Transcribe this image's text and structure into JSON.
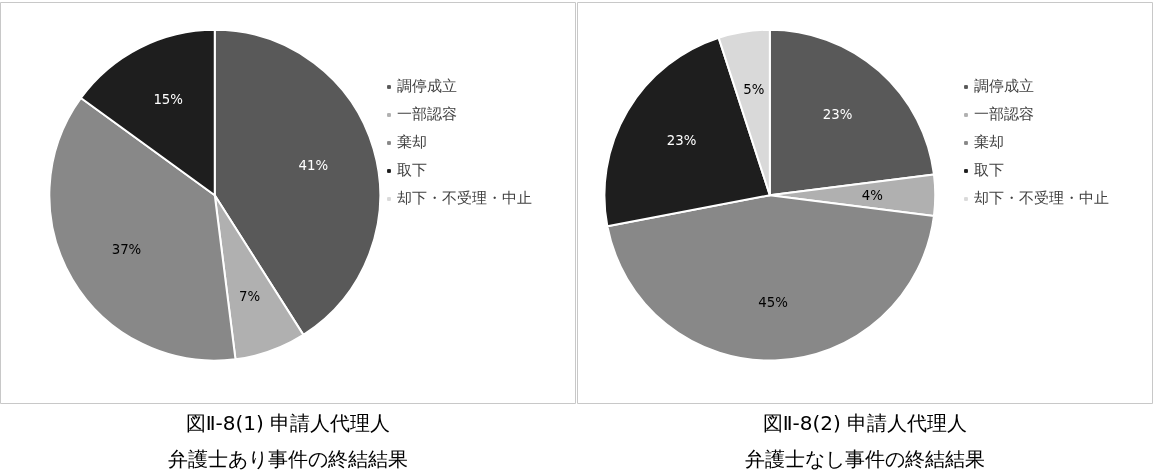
{
  "chart_data": [
    {
      "type": "pie",
      "title": "図Ⅱ-8(1) 申請人代理人",
      "subtitle": "弁護士あり事件の終結結果",
      "categories": [
        "調停成立",
        "一部認容",
        "棄却",
        "取下",
        "却下・不受理・中止"
      ],
      "values": [
        41,
        7,
        37,
        15,
        0
      ],
      "colors": [
        "#595959",
        "#b0b0b0",
        "#888888",
        "#1e1e1e",
        "#d9d9d9"
      ],
      "value_labels": [
        "41%",
        "7%",
        "37%",
        "15%",
        null
      ],
      "legend": "right"
    },
    {
      "type": "pie",
      "title": "図Ⅱ-8(2) 申請人代理人",
      "subtitle": "弁護士なし事件の終結結果",
      "categories": [
        "調停成立",
        "一部認容",
        "棄却",
        "取下",
        "却下・不受理・中止"
      ],
      "values": [
        23,
        4,
        45,
        23,
        5
      ],
      "colors": [
        "#595959",
        "#b0b0b0",
        "#888888",
        "#1e1e1e",
        "#d9d9d9"
      ],
      "value_labels": [
        "23%",
        "4%",
        "45%",
        "23%",
        "5%"
      ],
      "legend": "right"
    }
  ]
}
